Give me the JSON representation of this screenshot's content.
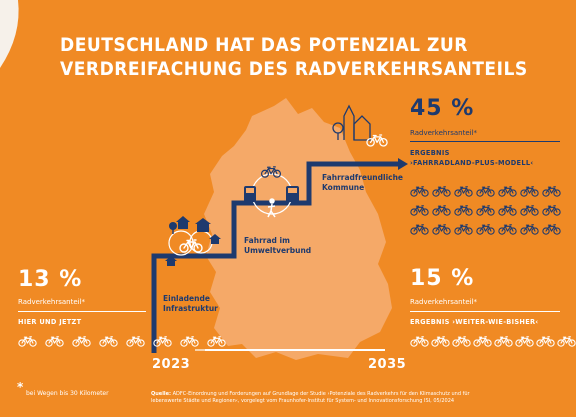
{
  "title_line1": "DEUTSCHLAND HAT DAS POTENZIAL ZUR",
  "title_line2": "VERDREIFACHUNG DES RADVERKEHRSANTEILS",
  "left": {
    "percent": "13 %",
    "share_label": "Radverkehrsanteil*",
    "caption": "HIER UND JETZT",
    "bikes": 8
  },
  "top_right": {
    "percent": "45 %",
    "share_label": "Radverkehrsanteil*",
    "caption_line1": "ERGEBNIS",
    "caption_line2": "›FAHRRADLAND-PLUS-MODELL‹",
    "bikes": 21
  },
  "bottom_right": {
    "percent": "15 %",
    "share_label": "Radverkehrsanteil*",
    "caption": "ERGEBNIS ›WEITER-WIE-BISHER‹",
    "bikes": 8
  },
  "steps": {
    "step1": [
      "Einladende",
      "Infrastruktur"
    ],
    "step2": [
      "Fahrrad im",
      "Umweltverbund"
    ],
    "step3": [
      "Fahrradfreundliche",
      "Kommune"
    ]
  },
  "years": {
    "start": "2023",
    "end": "2035"
  },
  "footnote_star": "*",
  "footnote": "bei Wegen bis 30 Kilometer",
  "source": {
    "line1_bold": "Quelle:",
    "line1": "ADFC-Einordnung und Forderungen auf Grundlage der Studie ›Potenziale des Radverkehrs für den Klimaschutz und für",
    "line2": "lebenswerte Städte und Regionen‹, vorgelegt vom Fraunhofer-Institut für System- und Innovationsforschung ISI, 05/2024"
  },
  "colors": {
    "background": "#F08A24",
    "map": "#F5A968",
    "navy": "#1E3A6E",
    "white": "#FFFFFF"
  },
  "icons": [
    "bicycle-icon",
    "tree-icon",
    "house-icon",
    "person-walking-icon",
    "train-icon",
    "bus-icon",
    "church-icon",
    "arrow-right-icon"
  ]
}
